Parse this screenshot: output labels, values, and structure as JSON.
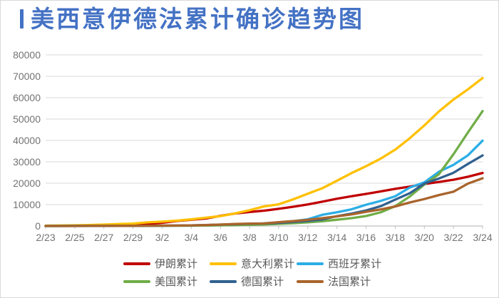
{
  "title": "美西意伊德法累计确诊趋势图",
  "colors": {
    "title_accent": "#4472C4",
    "gridline": "#D9D9D9",
    "axis_line": "#BFBFBF",
    "tick_label": "#737373",
    "legend_text": "#595959"
  },
  "chart_data": {
    "type": "line",
    "title": "美西意伊德法累计确诊趋势图",
    "xlabel": "",
    "ylabel": "",
    "ylim": [
      0,
      80000
    ],
    "y_tick_step": 10000,
    "y_tick_labels": [
      "0",
      "10000",
      "20000",
      "30000",
      "40000",
      "50000",
      "60000",
      "70000",
      "80000"
    ],
    "grid": "horizontal",
    "legend_position": "bottom",
    "x": [
      "2/23",
      "2/24",
      "2/25",
      "2/26",
      "2/27",
      "2/28",
      "2/29",
      "3/1",
      "3/2",
      "3/3",
      "3/4",
      "3/5",
      "3/6",
      "3/7",
      "3/8",
      "3/9",
      "3/10",
      "3/11",
      "3/12",
      "3/13",
      "3/14",
      "3/15",
      "3/16",
      "3/17",
      "3/18",
      "3/19",
      "3/20",
      "3/21",
      "3/22",
      "3/23",
      "3/24"
    ],
    "x_tick_labels": [
      "2/23",
      "2/25",
      "2/27",
      "2/29",
      "3/2",
      "3/4",
      "3/6",
      "3/8",
      "3/10",
      "3/12",
      "3/14",
      "3/16",
      "3/18",
      "3/20",
      "3/22",
      "3/24"
    ],
    "series": [
      {
        "id": "iran",
        "name": "伊朗累计",
        "color": "#C00000",
        "values": [
          43,
          61,
          95,
          139,
          245,
          388,
          593,
          978,
          1501,
          2336,
          2922,
          3513,
          4747,
          5823,
          6566,
          7161,
          8042,
          9000,
          10075,
          11364,
          12729,
          13938,
          14991,
          16169,
          17361,
          18407,
          19644,
          20610,
          21638,
          23049,
          24811
        ]
      },
      {
        "id": "italy",
        "name": "意大利累计",
        "color": "#FFC000",
        "values": [
          155,
          229,
          322,
          453,
          655,
          888,
          1128,
          1694,
          2036,
          2502,
          3089,
          3858,
          4636,
          5883,
          7375,
          9172,
          10149,
          12462,
          15113,
          17660,
          21157,
          24747,
          27980,
          31506,
          35713,
          41035,
          47021,
          53578,
          59138,
          63927,
          69176
        ]
      },
      {
        "id": "spain",
        "name": "西班牙累计",
        "color": "#2CAEE6",
        "values": [
          2,
          2,
          6,
          13,
          15,
          32,
          45,
          84,
          120,
          165,
          222,
          259,
          400,
          500,
          673,
          1231,
          1695,
          2277,
          3146,
          5232,
          6391,
          7798,
          9942,
          11748,
          13910,
          17963,
          20410,
          25374,
          28572,
          33089,
          39885
        ]
      },
      {
        "id": "usa",
        "name": "美国累计",
        "color": "#70AD47",
        "values": [
          35,
          35,
          53,
          57,
          60,
          62,
          68,
          75,
          100,
          124,
          158,
          221,
          319,
          435,
          541,
          704,
          994,
          1301,
          1697,
          2247,
          2943,
          3680,
          4663,
          6411,
          9259,
          13789,
          19383,
          24207,
          33546,
          43847,
          53740
        ]
      },
      {
        "id": "germany",
        "name": "德国累计",
        "color": "#30618F",
        "values": [
          16,
          16,
          17,
          27,
          46,
          48,
          79,
          130,
          159,
          196,
          262,
          482,
          670,
          799,
          1040,
          1176,
          1457,
          1908,
          2369,
          3062,
          4585,
          5795,
          7272,
          9257,
          12327,
          15320,
          19848,
          22213,
          24873,
          29056,
          32986
        ]
      },
      {
        "id": "france",
        "name": "法国累计",
        "color": "#A9642C",
        "values": [
          12,
          12,
          14,
          18,
          38,
          57,
          100,
          130,
          191,
          212,
          285,
          423,
          653,
          949,
          1126,
          1209,
          1784,
          2281,
          2876,
          3661,
          4499,
          5423,
          6633,
          7730,
          9134,
          10995,
          12612,
          14459,
          16018,
          19856,
          22304
        ]
      }
    ]
  }
}
